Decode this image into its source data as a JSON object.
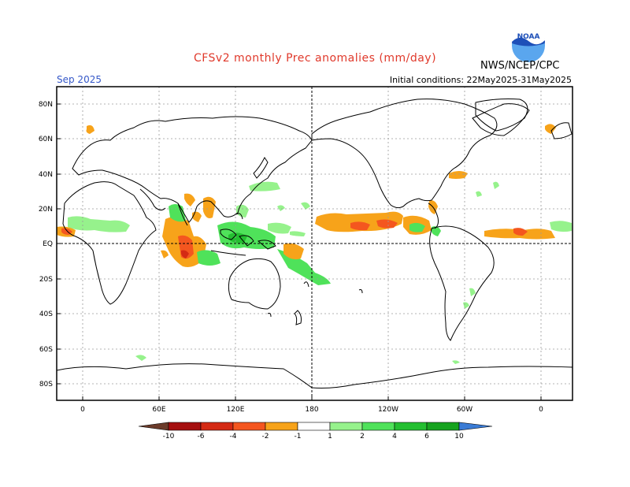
{
  "title": "CFSv2 monthly Prec anomalies (mm/day)",
  "agency": "NWS/NCEP/CPC",
  "logo_text": "NOAA",
  "valid_month": "Sep 2025",
  "initial_conditions": "Initial conditions: 22May2025-31May2025",
  "lat_labels": [
    "80N",
    "60N",
    "40N",
    "20N",
    "EQ",
    "20S",
    "40S",
    "60S",
    "80S"
  ],
  "lon_labels": [
    "0",
    "60E",
    "120E",
    "180",
    "120W",
    "60W",
    "0"
  ],
  "colorbar": {
    "labels": [
      "-10",
      "-6",
      "-4",
      "-2",
      "-1",
      "1",
      "2",
      "4",
      "6",
      "10"
    ],
    "colors": {
      "lt_neg10": "#6b3b2a",
      "neg10_neg6": "#a50f0f",
      "neg6_neg4": "#d42a14",
      "neg4_neg2": "#f4561f",
      "neg2_neg1": "#f7a31a",
      "neg1_1": "#ffffff",
      "1_2": "#96f28c",
      "2_4": "#4fe25a",
      "4_6": "#24bf31",
      "6_10": "#17a31f",
      "gt10": "#3a7bd5"
    }
  }
}
